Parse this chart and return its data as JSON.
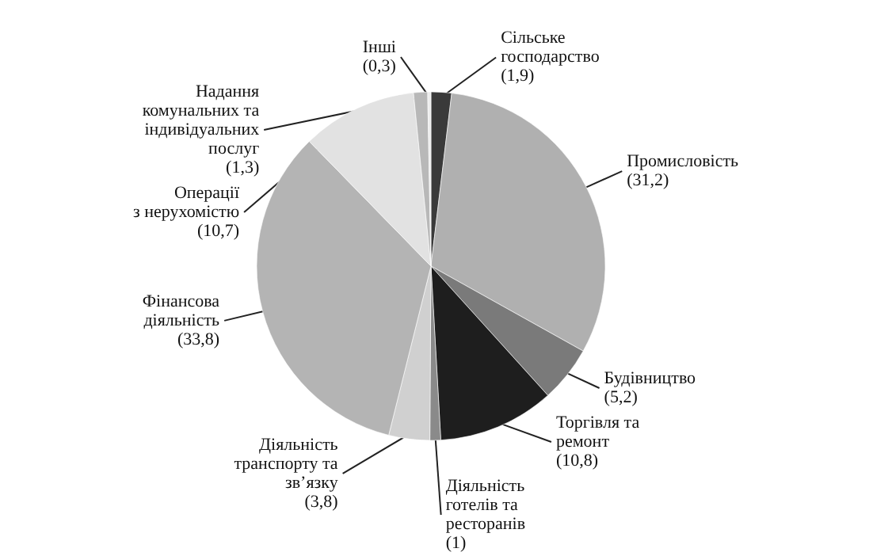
{
  "chart_data": {
    "type": "pie",
    "categories": [
      "Сільське\nгосподарство",
      "Промисловість",
      "Будівництво",
      "Торгівля та\nремонт",
      "Діяльність\nготелів та\nресторанів",
      "Діяльність\nтранспорту та\nзв’язку",
      "Фінансова\nдіяльність",
      "Операції\nз нерухомістю",
      "Надання\nкомунальних та\nіндивідуальних\nпослуг",
      "Інші"
    ],
    "values": [
      1.9,
      31.2,
      5.2,
      10.8,
      1,
      3.8,
      33.8,
      10.7,
      1.3,
      0.3
    ],
    "value_labels": [
      "(1,9)",
      "(31,2)",
      "(5,2)",
      "(10,8)",
      "(1)",
      "(3,8)",
      "(33,8)",
      "(10,7)",
      "(1,3)",
      "(0,3)"
    ],
    "colors": [
      "#3a3a3a",
      "#b0b0b0",
      "#7a7a7a",
      "#1e1e1e",
      "#8a8a8a",
      "#d0d0d0",
      "#b4b4b4",
      "#e2e2e2",
      "#b8b8b8",
      "#ececec"
    ]
  }
}
